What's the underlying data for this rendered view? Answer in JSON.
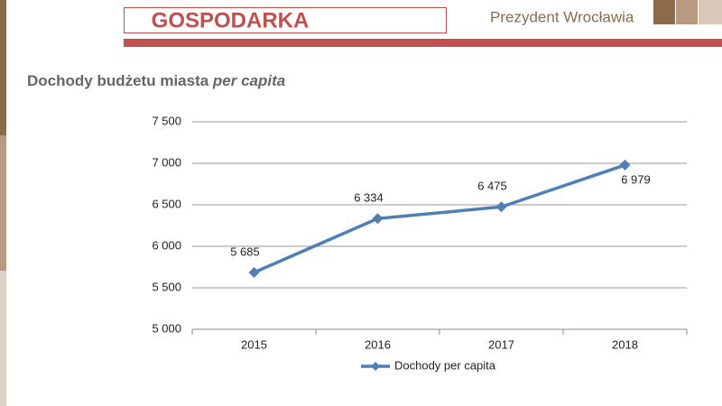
{
  "header": {
    "title": "GOSPODARKA",
    "logo": "Prezydent Wrocławia"
  },
  "chart_data": {
    "type": "line",
    "title": [
      "Dochody budżetu miasta",
      "per capita"
    ],
    "categories": [
      "2015",
      "2016",
      "2017",
      "2018"
    ],
    "series": [
      {
        "name": "Dochody per capita",
        "color": "#4f7fb5",
        "values": [
          5685,
          6334,
          6475,
          6979
        ],
        "value_labels": [
          "5 685",
          "6 334",
          "6 475",
          "6 979"
        ]
      }
    ],
    "ylim": [
      5000,
      7500
    ],
    "yticks": [
      {
        "value": 5000,
        "label": "5 000"
      },
      {
        "value": 5500,
        "label": "5 500"
      },
      {
        "value": 6000,
        "label": "6 000"
      },
      {
        "value": 6500,
        "label": "6 500"
      },
      {
        "value": 7000,
        "label": "7 000"
      },
      {
        "value": 7500,
        "label": "7 500"
      }
    ],
    "grid": true,
    "legend": "bottom"
  }
}
